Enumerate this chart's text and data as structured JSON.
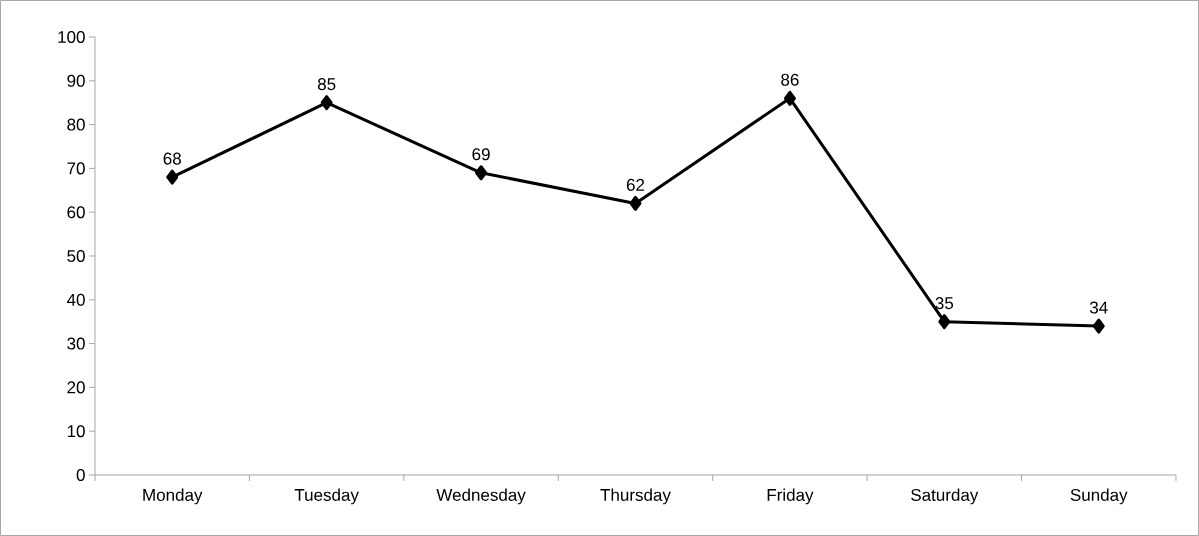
{
  "chart_data": {
    "type": "line",
    "categories": [
      "Monday",
      "Tuesday",
      "Wednesday",
      "Thursday",
      "Friday",
      "Saturday",
      "Sunday"
    ],
    "values": [
      68,
      85,
      69,
      62,
      86,
      35,
      34
    ],
    "color": "#000000",
    "ylim": [
      0,
      100
    ],
    "yticks": [
      0,
      10,
      20,
      30,
      40,
      50,
      60,
      70,
      80,
      90,
      100
    ],
    "marker": "diamond",
    "line_style": "solid",
    "data_labels": true
  }
}
